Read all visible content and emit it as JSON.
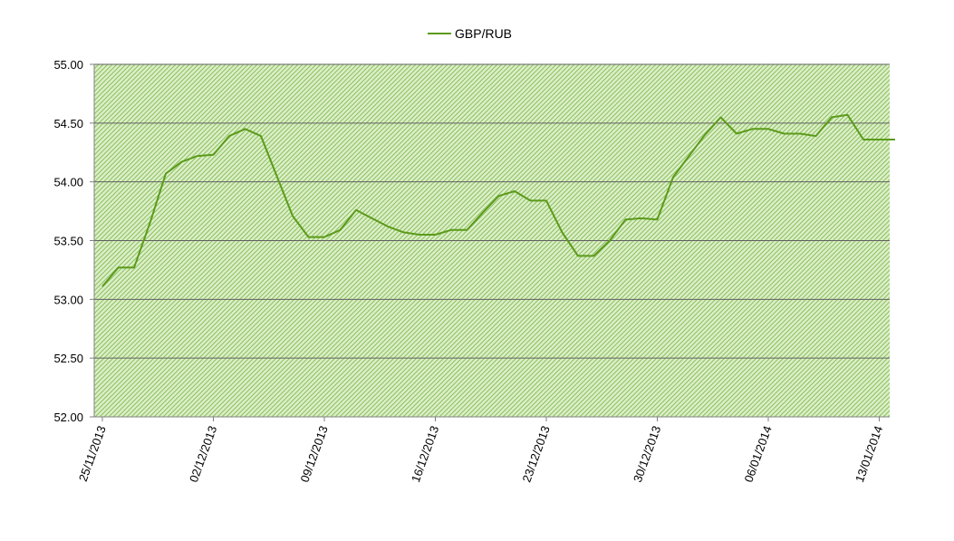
{
  "chart_data": {
    "type": "line",
    "title": "",
    "xlabel": "",
    "ylabel": "",
    "ylim": [
      52.0,
      55.0
    ],
    "y_ticks": [
      "52.00",
      "52.50",
      "53.00",
      "53.50",
      "54.00",
      "54.50",
      "55.00"
    ],
    "x_ticks": [
      "25/11/2013",
      "02/12/2013",
      "09/12/2013",
      "16/12/2013",
      "23/12/2013",
      "30/12/2013",
      "06/01/2014",
      "13/01/2014"
    ],
    "grid": true,
    "legend_position": "top-center",
    "colors": {
      "line": "#5b9b1a",
      "plot_fill": "#dcefc8",
      "hatch": "#8cc060",
      "grid": "#606060"
    },
    "series": [
      {
        "name": "GBP/RUB",
        "x": [
          "25/11/2013",
          "26/11/2013",
          "27/11/2013",
          "28/11/2013",
          "29/11/2013",
          "30/11/2013",
          "01/12/2013",
          "02/12/2013",
          "03/12/2013",
          "04/12/2013",
          "05/12/2013",
          "06/12/2013",
          "07/12/2013",
          "08/12/2013",
          "09/12/2013",
          "10/12/2013",
          "11/12/2013",
          "12/12/2013",
          "13/12/2013",
          "14/12/2013",
          "15/12/2013",
          "16/12/2013",
          "17/12/2013",
          "18/12/2013",
          "19/12/2013",
          "20/12/2013",
          "21/12/2013",
          "22/12/2013",
          "23/12/2013",
          "24/12/2013",
          "25/12/2013",
          "26/12/2013",
          "27/12/2013",
          "28/12/2013",
          "29/12/2013",
          "30/12/2013",
          "31/12/2013",
          "01/01/2014",
          "02/01/2014",
          "03/01/2014",
          "04/01/2014",
          "05/01/2014",
          "06/01/2014",
          "07/01/2014",
          "08/01/2014",
          "09/01/2014",
          "10/01/2014",
          "11/01/2014",
          "12/01/2014",
          "13/01/2014",
          "14/01/2014"
        ],
        "values": [
          53.11,
          53.27,
          53.27,
          53.65,
          54.07,
          54.17,
          54.22,
          54.23,
          54.39,
          54.45,
          54.39,
          54.05,
          53.71,
          53.53,
          53.53,
          53.59,
          53.76,
          53.69,
          53.62,
          53.57,
          53.55,
          53.55,
          53.59,
          53.59,
          53.74,
          53.88,
          53.92,
          53.84,
          53.84,
          53.57,
          53.37,
          53.37,
          53.5,
          53.68,
          53.69,
          53.68,
          54.04,
          54.22,
          54.4,
          54.55,
          54.41,
          54.45,
          54.45,
          54.41,
          54.41,
          54.39,
          54.55,
          54.57,
          54.36,
          54.36,
          54.36
        ]
      }
    ]
  }
}
